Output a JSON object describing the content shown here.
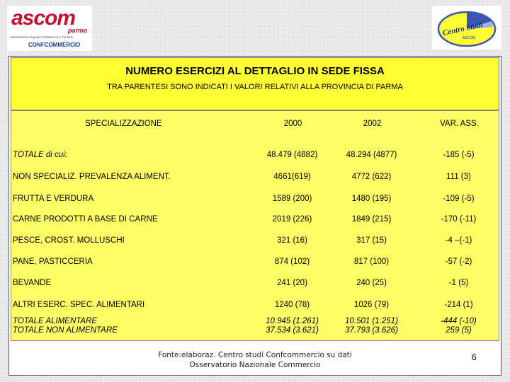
{
  "logos": {
    "ascom": {
      "word": "ascom",
      "city": "parma",
      "tagline": "Associazione Imprese Commercio e Turismo",
      "brand": "CONFCOMMERCIO"
    },
    "centro_studi": {
      "text": "Centro Studi",
      "subtext": "ASCOM"
    }
  },
  "header": {
    "title": "NUMERO ESERCIZI AL DETTAGLIO IN SEDE FISSA",
    "subtitle": "TRA PARENTESI SONO INDICATI I VALORI RELATIVI ALLA PROVINCIA DI PARMA"
  },
  "table": {
    "columns": [
      "SPECIALIZZAZIONE",
      "2000",
      "2002",
      "VAR. ASS."
    ],
    "rows": [
      {
        "name": "TOTALE  di cui:",
        "v2000": "48.479 (4882)",
        "v2002": "48.294 (4877)",
        "var": "-185 (-5)",
        "italic": true
      },
      {
        "name": "NON SPECIALIZ. PREVALENZA ALIMENT.",
        "v2000": "4661(619)",
        "v2002": "4772 (622)",
        "var": "111 (3)",
        "italic": false
      },
      {
        "name": "FRUTTA E VERDURA",
        "v2000": "1589 (200)",
        "v2002": "1480 (195)",
        "var": "-109 (-5)",
        "italic": false
      },
      {
        "name": "CARNE PRODOTTI A BASE DI CARNE",
        "v2000": "2019 (226)",
        "v2002": "1849 (215)",
        "var": "-170 (-11)",
        "italic": false
      },
      {
        "name": "PESCE, CROST. MOLLUSCHI",
        "v2000": "321 (16)",
        "v2002": "317 (15)",
        "var": "-4 –(-1)",
        "italic": false
      },
      {
        "name": "PANE, PASTICCERIA",
        "v2000": "874 (102)",
        "v2002": "817 (100)",
        "var": "-57 (-2)",
        "italic": false
      },
      {
        "name": "BEVANDE",
        "v2000": "241 (20)",
        "v2002": "240 (25)",
        "var": "-1 (5)",
        "italic": false
      },
      {
        "name": "ALTRI ESERC. SPEC. ALIMENTARI",
        "v2000": "1240 (78)",
        "v2002": "1026 (79)",
        "var": "-214 (1)",
        "italic": false
      }
    ],
    "totals": {
      "name_line1": "TOTALE ALIMENTARE",
      "name_line2": "TOTALE NON ALIMENTARE",
      "v2000_line1": "10.945 (1.261)",
      "v2000_line2": "37.534 (3.621)",
      "v2002_line1": "10.501 (1.251)",
      "v2002_line2": "37.793 (3.626)",
      "var_line1": "-444 (-10)",
      "var_line2": "259 (5)"
    }
  },
  "footer": {
    "line1": "Fonte:elaboraz. Centro studi Confcommercio su dati",
    "line2": "Osservatorio Nazionale Commercio"
  },
  "page_number": "6",
  "colors": {
    "header_yellow": "#ffff33",
    "table_yellow": "#ffff66",
    "ascom_red": "#c8102e",
    "confcommercio_blue": "#1a3c8a"
  }
}
